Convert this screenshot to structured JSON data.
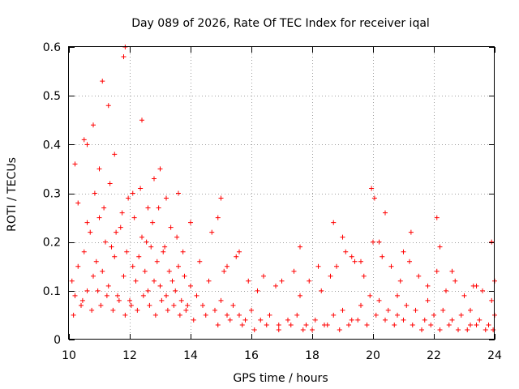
{
  "chart_data": {
    "type": "scatter",
    "title": "Day 089 of 2026, Rate Of TEC Index for receiver iqal",
    "xlabel": "GPS time / hours",
    "ylabel": "ROTI / TECUs",
    "xlim": [
      10,
      24
    ],
    "ylim": [
      0,
      0.6
    ],
    "x_ticks": [
      10,
      12,
      14,
      16,
      18,
      20,
      22,
      24
    ],
    "y_ticks": [
      0,
      0.1,
      0.2,
      0.3,
      0.4,
      0.5,
      0.6
    ],
    "x_tick_labels": [
      "10",
      "12",
      "14",
      "16",
      "18",
      "20",
      "22",
      "24"
    ],
    "y_tick_labels": [
      "0",
      "0.1",
      "0.2",
      "0.3",
      "0.4",
      "0.5",
      "0.6"
    ],
    "grid": true,
    "marker": "+",
    "series": [
      {
        "name": "ROTI",
        "color": "#ff0000",
        "x": [
          10.1,
          10.2,
          10.3,
          10.4,
          10.5,
          10.6,
          10.7,
          10.8,
          10.9,
          11.0,
          11.1,
          11.2,
          11.3,
          11.4,
          11.5,
          11.6,
          11.7,
          11.8,
          11.9,
          12.0,
          12.1,
          12.2,
          12.3,
          12.4,
          12.5,
          12.6,
          12.7,
          12.8,
          12.9,
          13.0,
          13.1,
          13.2,
          13.3,
          13.4,
          13.5,
          13.6,
          13.7,
          13.8,
          13.9,
          14.0,
          14.2,
          14.4,
          14.6,
          14.8,
          15.0,
          15.2,
          15.4,
          15.6,
          15.8,
          16.0,
          16.3,
          16.6,
          16.9,
          17.2,
          17.5,
          17.8,
          18.1,
          18.4,
          18.7,
          19.0,
          19.3,
          19.6,
          19.9,
          20.2,
          20.5,
          20.8,
          21.1,
          21.4,
          21.7,
          22.0,
          22.3,
          22.6,
          22.9,
          23.2,
          23.5,
          23.8,
          24.0,
          10.15,
          10.45,
          10.75,
          10.95,
          11.05,
          11.25,
          11.45,
          11.65,
          11.85,
          12.05,
          12.25,
          12.45,
          12.65,
          12.85,
          13.05,
          13.25,
          13.45,
          13.65,
          13.85,
          14.1,
          14.5,
          14.9,
          15.3,
          15.7,
          16.1,
          16.5,
          16.9,
          17.3,
          17.7,
          18.0,
          18.5,
          18.9,
          19.2,
          19.5,
          19.8,
          20.1,
          20.4,
          20.7,
          21.0,
          21.3,
          21.6,
          21.9,
          22.2,
          22.5,
          22.8,
          23.1,
          23.4,
          23.7,
          23.95,
          10.3,
          10.6,
          10.85,
          11.15,
          11.35,
          11.55,
          11.75,
          11.95,
          12.15,
          12.35,
          12.55,
          12.75,
          12.95,
          13.15,
          13.35,
          13.55,
          13.75,
          14.3,
          14.7,
          15.1,
          15.5,
          15.9,
          16.4,
          16.8,
          17.4,
          17.9,
          18.3,
          18.8,
          19.1,
          19.4,
          19.7,
          20.0,
          20.3,
          20.6,
          20.9,
          21.2,
          21.5,
          21.8,
          22.1,
          22.4,
          22.7,
          23.0,
          23.3,
          23.6,
          23.9,
          10.5,
          10.8,
          11.0,
          11.8,
          11.85,
          12.1,
          12.6,
          13.2,
          14.9,
          15.0,
          17.6,
          18.7,
          19.3,
          19.95,
          20.05,
          20.2,
          21.25,
          22.1,
          22.2,
          23.9,
          24.0,
          10.2,
          11.1,
          11.5,
          12.4,
          13.0,
          14.0,
          15.6,
          17.0,
          18.2,
          19.0,
          20.4,
          21.0,
          22.6,
          23.4,
          10.6,
          11.3,
          12.8,
          13.6,
          15.2,
          16.2,
          17.6,
          18.6,
          19.6,
          20.8,
          21.8,
          23.2
        ],
        "y": [
          0.12,
          0.09,
          0.15,
          0.07,
          0.18,
          0.1,
          0.22,
          0.13,
          0.16,
          0.25,
          0.14,
          0.2,
          0.11,
          0.19,
          0.17,
          0.09,
          0.23,
          0.13,
          0.18,
          0.08,
          0.15,
          0.12,
          0.17,
          0.21,
          0.14,
          0.1,
          0.19,
          0.12,
          0.16,
          0.11,
          0.18,
          0.09,
          0.14,
          0.12,
          0.1,
          0.15,
          0.08,
          0.13,
          0.07,
          0.11,
          0.09,
          0.07,
          0.12,
          0.06,
          0.08,
          0.05,
          0.07,
          0.05,
          0.04,
          0.06,
          0.04,
          0.05,
          0.03,
          0.04,
          0.05,
          0.03,
          0.04,
          0.03,
          0.05,
          0.06,
          0.04,
          0.07,
          0.09,
          0.08,
          0.06,
          0.05,
          0.07,
          0.06,
          0.04,
          0.05,
          0.06,
          0.04,
          0.05,
          0.03,
          0.04,
          0.03,
          0.05,
          0.05,
          0.08,
          0.06,
          0.1,
          0.07,
          0.09,
          0.06,
          0.08,
          0.05,
          0.07,
          0.06,
          0.09,
          0.07,
          0.05,
          0.08,
          0.06,
          0.07,
          0.05,
          0.06,
          0.04,
          0.05,
          0.03,
          0.04,
          0.03,
          0.02,
          0.03,
          0.02,
          0.03,
          0.02,
          0.02,
          0.03,
          0.02,
          0.03,
          0.04,
          0.03,
          0.05,
          0.04,
          0.03,
          0.04,
          0.03,
          0.02,
          0.03,
          0.02,
          0.03,
          0.02,
          0.02,
          0.03,
          0.02,
          0.02,
          0.28,
          0.24,
          0.3,
          0.27,
          0.32,
          0.22,
          0.26,
          0.29,
          0.25,
          0.31,
          0.2,
          0.24,
          0.27,
          0.19,
          0.23,
          0.21,
          0.18,
          0.16,
          0.22,
          0.14,
          0.17,
          0.12,
          0.13,
          0.11,
          0.14,
          0.12,
          0.1,
          0.15,
          0.18,
          0.16,
          0.13,
          0.2,
          0.17,
          0.15,
          0.12,
          0.16,
          0.13,
          0.11,
          0.14,
          0.1,
          0.12,
          0.09,
          0.11,
          0.1,
          0.08,
          0.41,
          0.44,
          0.35,
          0.58,
          0.6,
          0.3,
          0.27,
          0.29,
          0.25,
          0.29,
          0.19,
          0.24,
          0.17,
          0.31,
          0.29,
          0.2,
          0.22,
          0.25,
          0.19,
          0.2,
          0.12,
          0.36,
          0.53,
          0.38,
          0.45,
          0.35,
          0.24,
          0.18,
          0.12,
          0.15,
          0.21,
          0.26,
          0.18,
          0.14,
          0.11,
          0.4,
          0.48,
          0.33,
          0.3,
          0.15,
          0.1,
          0.09,
          0.13,
          0.16,
          0.09,
          0.08,
          0.06
        ]
      }
    ]
  }
}
